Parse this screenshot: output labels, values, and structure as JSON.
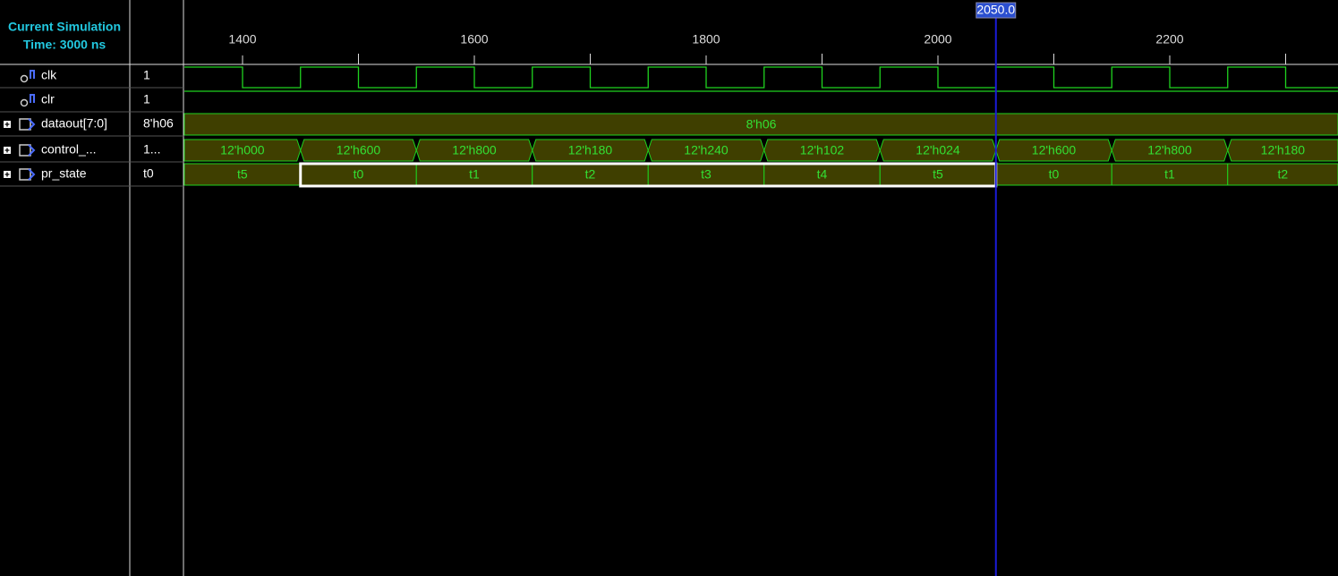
{
  "header": {
    "title": "Current Simulation",
    "time": "Time: 3000 ns"
  },
  "time_axis": {
    "ticks": [
      1400,
      1600,
      1800,
      2000,
      2200
    ],
    "cursor": {
      "value": 2050,
      "label": "2050.0"
    }
  },
  "signals": [
    {
      "name": "clk",
      "value": "1"
    },
    {
      "name": "clr",
      "value": "1"
    },
    {
      "name": "dataout[7:0]",
      "value": "8'h06",
      "segments": [
        "8'h06"
      ]
    },
    {
      "name": "control_...",
      "value": "1...",
      "segments": [
        "12'h000",
        "12'h600",
        "12'h800",
        "12'h180",
        "12'h240",
        "12'h102",
        "12'h024",
        "12'h600",
        "12'h800",
        "12'h180"
      ]
    },
    {
      "name": "pr_state",
      "value": "t0",
      "segments": [
        "t5",
        "t0",
        "t1",
        "t2",
        "t3",
        "t4",
        "t5",
        "t0",
        "t1",
        "t2"
      ]
    }
  ]
}
